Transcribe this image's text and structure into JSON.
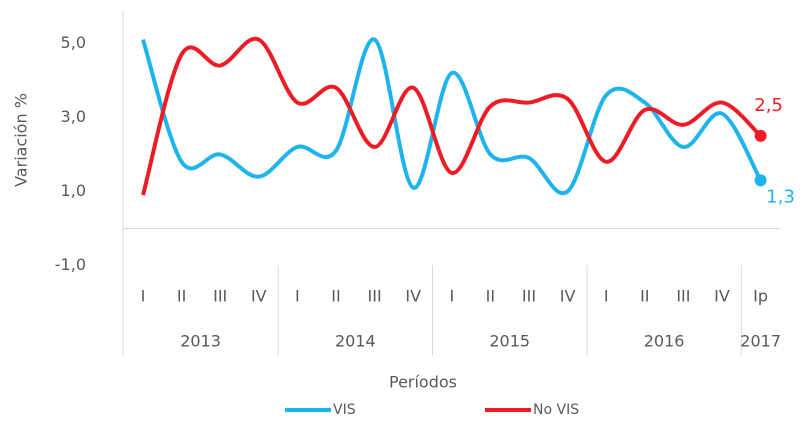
{
  "chart_data": {
    "type": "line",
    "y_label": "Variación %",
    "x_label": "Períodos",
    "category_groups": [
      {
        "name": "2013",
        "categories": [
          "I",
          "II",
          "III",
          "IV"
        ]
      },
      {
        "name": "2014",
        "categories": [
          "I",
          "II",
          "III",
          "IV"
        ]
      },
      {
        "name": "2015",
        "categories": [
          "I",
          "II",
          "III",
          "IV"
        ]
      },
      {
        "name": "2016",
        "categories": [
          "I",
          "II",
          "III",
          "IV"
        ]
      },
      {
        "name": "2017",
        "categories": [
          "Ip"
        ]
      }
    ],
    "series": [
      {
        "name": "VIS",
        "color": "#1fb4ec",
        "values": [
          5.1,
          1.8,
          2.0,
          1.4,
          2.2,
          2.1,
          5.1,
          1.1,
          4.2,
          2.0,
          1.9,
          1.0,
          3.6,
          3.4,
          2.2,
          3.1,
          1.3
        ],
        "value_labels": [
          null,
          null,
          null,
          null,
          null,
          null,
          null,
          null,
          null,
          null,
          null,
          null,
          null,
          null,
          null,
          null,
          "1,3"
        ]
      },
      {
        "name": "No VIS",
        "color": "#ee1c25",
        "values": [
          0.9,
          4.7,
          4.4,
          5.1,
          3.4,
          3.8,
          2.2,
          3.8,
          1.5,
          3.3,
          3.4,
          3.5,
          1.8,
          3.2,
          2.8,
          3.4,
          2.5
        ],
        "value_labels": [
          null,
          null,
          null,
          null,
          null,
          null,
          null,
          null,
          null,
          null,
          null,
          null,
          null,
          null,
          null,
          null,
          "2,5"
        ]
      }
    ],
    "ylim": [
      -1.5,
      5.9
    ],
    "yticks": [
      {
        "value": -1,
        "label": "-1,0"
      },
      {
        "value": 1,
        "label": "1,0"
      },
      {
        "value": 3,
        "label": "3,0"
      },
      {
        "value": 5,
        "label": "5,0"
      }
    ],
    "smooth": true
  }
}
